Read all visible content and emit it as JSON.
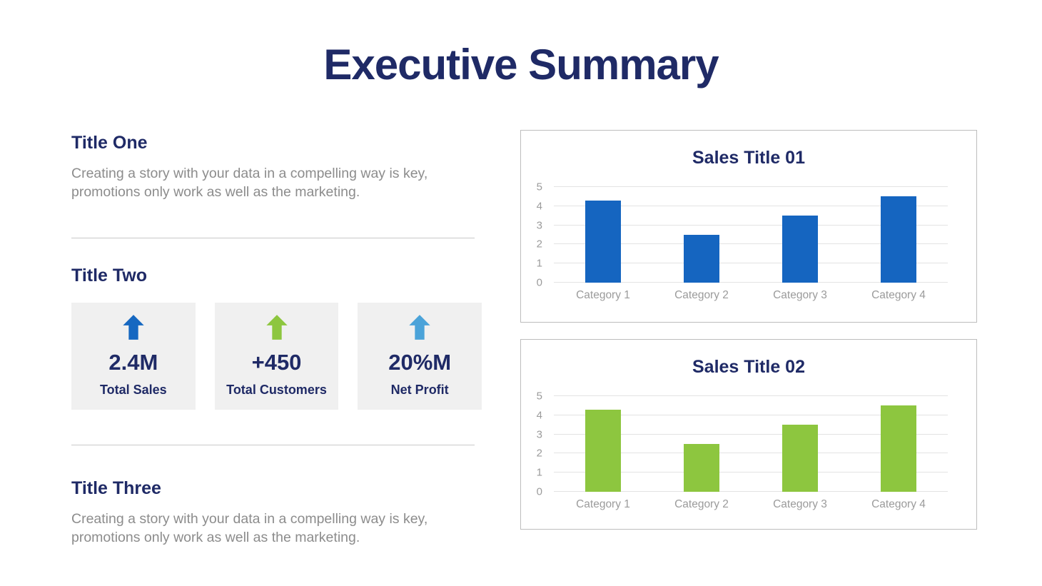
{
  "title": "Executive Summary",
  "colors": {
    "navy": "#1F2A66",
    "gray-text": "#8C8C8C",
    "tick-text": "#9B9B9B",
    "card-bg": "#F0F0F0",
    "divider": "#C9C9C9",
    "chart-border": "#BDBDBD",
    "gridline": "#E3E3E3",
    "accent-blue": "#1565C0",
    "accent-green": "#8DC63F",
    "accent-light-blue": "#4BA3D9"
  },
  "sections": {
    "one": {
      "heading": "Title One",
      "body": "Creating a story with your data in a compelling way is key, promotions only work as well as the marketing."
    },
    "two": {
      "heading": "Title Two"
    },
    "three": {
      "heading": "Title Three",
      "body": "Creating a story with your data in a compelling way is key, promotions only work as well as the marketing."
    }
  },
  "stats": [
    {
      "value": "2.4M",
      "label": "Total Sales",
      "arrow_color": "#1668C1",
      "icon": "arrow-up-icon"
    },
    {
      "value": "+450",
      "label": "Total Customers",
      "arrow_color": "#8DC63F",
      "icon": "arrow-up-icon"
    },
    {
      "value": "20%M",
      "label": "Net Profit",
      "arrow_color": "#4BA3D9",
      "icon": "arrow-up-icon"
    }
  ],
  "chart_data": [
    {
      "type": "bar",
      "title": "Sales Title 01",
      "categories": [
        "Category 1",
        "Category 2",
        "Category 3",
        "Category 4"
      ],
      "values": [
        4.3,
        2.5,
        3.5,
        4.5
      ],
      "xlabel": "",
      "ylabel": "",
      "ylim": [
        0,
        5
      ],
      "yticks": [
        0,
        1,
        2,
        3,
        4,
        5
      ],
      "bar_color": "#1565C0",
      "grid": true,
      "legend": "none"
    },
    {
      "type": "bar",
      "title": "Sales Title 02",
      "categories": [
        "Category 1",
        "Category 2",
        "Category 3",
        "Category 4"
      ],
      "values": [
        4.3,
        2.5,
        3.5,
        4.5
      ],
      "xlabel": "",
      "ylabel": "",
      "ylim": [
        0,
        5
      ],
      "yticks": [
        0,
        1,
        2,
        3,
        4,
        5
      ],
      "bar_color": "#8DC63F",
      "grid": true,
      "legend": "none"
    }
  ]
}
